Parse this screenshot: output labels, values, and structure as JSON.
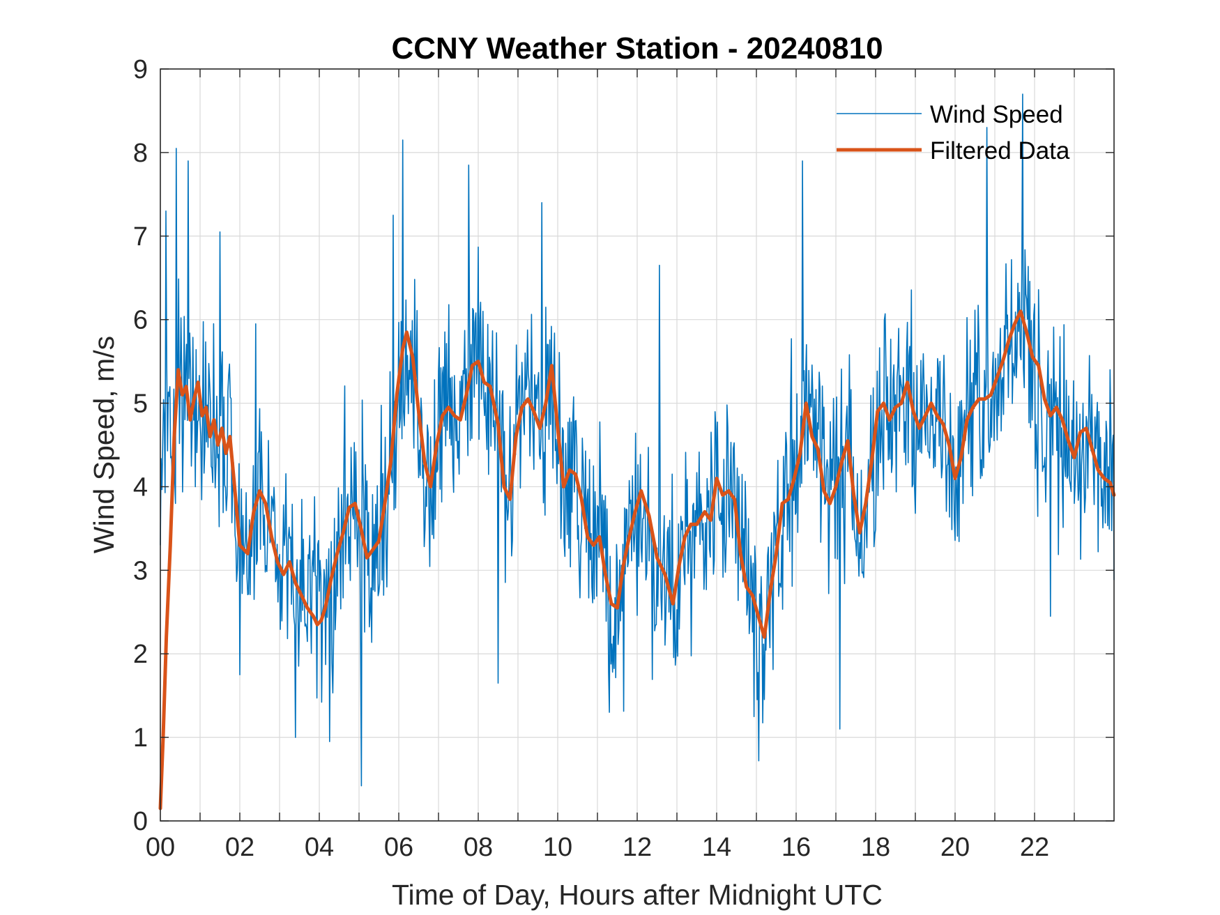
{
  "chart_data": {
    "type": "line",
    "title": "CCNY Weather Station - 20240810",
    "xlabel": "Time of Day, Hours after Midnight UTC",
    "ylabel": "Wind Speed, m/s",
    "xlim": [
      0,
      24
    ],
    "ylim": [
      0,
      9
    ],
    "x_ticks": [
      0,
      2,
      4,
      6,
      8,
      10,
      12,
      14,
      16,
      18,
      20,
      22
    ],
    "x_tick_labels": [
      "00",
      "02",
      "04",
      "06",
      "08",
      "10",
      "12",
      "14",
      "16",
      "18",
      "20",
      "22"
    ],
    "y_ticks": [
      0,
      1,
      2,
      3,
      4,
      5,
      6,
      7,
      8,
      9
    ],
    "y_tick_labels": [
      "0",
      "1",
      "2",
      "3",
      "4",
      "5",
      "6",
      "7",
      "8",
      "9"
    ],
    "grid": true,
    "legend_position": "top-right",
    "sample_interval_hours": 0.02,
    "series": [
      {
        "name": "Wind Speed",
        "color": "#0072BD",
        "line_width": "thin",
        "description": "raw 1-minute wind speed, highly noisy around the filtered trend",
        "key_points": [
          [
            0.0,
            3.3
          ],
          [
            0.15,
            7.3
          ],
          [
            0.4,
            8.05
          ],
          [
            0.7,
            7.9
          ],
          [
            1.5,
            7.05
          ],
          [
            2.0,
            1.75
          ],
          [
            2.4,
            5.95
          ],
          [
            3.4,
            1.0
          ],
          [
            4.25,
            0.95
          ],
          [
            5.05,
            0.42
          ],
          [
            5.85,
            7.25
          ],
          [
            6.1,
            8.15
          ],
          [
            7.3,
            5.3
          ],
          [
            7.75,
            7.85
          ],
          [
            8.5,
            1.65
          ],
          [
            9.6,
            7.4
          ],
          [
            11.3,
            1.3
          ],
          [
            12.55,
            6.65
          ],
          [
            15.05,
            0.72
          ],
          [
            16.15,
            7.9
          ],
          [
            17.1,
            1.1
          ],
          [
            20.8,
            8.3
          ],
          [
            21.7,
            8.7
          ],
          [
            22.4,
            2.45
          ],
          [
            23.9,
            5.4
          ]
        ]
      },
      {
        "name": "Filtered Data",
        "color": "#D95319",
        "line_width": "thick",
        "x": [
          0.0,
          0.07,
          0.15,
          0.25,
          0.35,
          0.45,
          0.55,
          0.65,
          0.75,
          0.85,
          0.95,
          1.05,
          1.15,
          1.25,
          1.35,
          1.45,
          1.55,
          1.65,
          1.75,
          1.85,
          2.0,
          2.2,
          2.35,
          2.5,
          2.65,
          2.8,
          2.95,
          3.1,
          3.25,
          3.4,
          3.55,
          3.7,
          3.85,
          3.95,
          4.05,
          4.15,
          4.3,
          4.45,
          4.6,
          4.75,
          4.9,
          5.05,
          5.2,
          5.35,
          5.5,
          5.65,
          5.8,
          5.95,
          6.1,
          6.2,
          6.35,
          6.5,
          6.65,
          6.8,
          6.95,
          7.1,
          7.25,
          7.4,
          7.55,
          7.7,
          7.85,
          8.0,
          8.15,
          8.3,
          8.5,
          8.65,
          8.8,
          8.95,
          9.1,
          9.25,
          9.4,
          9.55,
          9.7,
          9.85,
          10.0,
          10.15,
          10.3,
          10.45,
          10.6,
          10.75,
          10.9,
          11.05,
          11.2,
          11.35,
          11.5,
          11.65,
          11.8,
          11.95,
          12.1,
          12.3,
          12.5,
          12.7,
          12.9,
          13.05,
          13.2,
          13.35,
          13.5,
          13.7,
          13.85,
          14.0,
          14.15,
          14.3,
          14.45,
          14.6,
          14.75,
          14.9,
          15.05,
          15.2,
          15.35,
          15.5,
          15.65,
          15.8,
          15.95,
          16.1,
          16.25,
          16.4,
          16.55,
          16.7,
          16.85,
          17.0,
          17.15,
          17.3,
          17.45,
          17.6,
          17.75,
          17.9,
          18.05,
          18.2,
          18.35,
          18.5,
          18.65,
          18.8,
          18.95,
          19.1,
          19.25,
          19.4,
          19.55,
          19.7,
          19.85,
          20.0,
          20.15,
          20.3,
          20.45,
          20.6,
          20.75,
          20.9,
          21.05,
          21.2,
          21.35,
          21.5,
          21.65,
          21.8,
          21.95,
          22.1,
          22.25,
          22.4,
          22.55,
          22.7,
          22.85,
          23.0,
          23.15,
          23.3,
          23.45,
          23.6,
          23.75,
          23.9,
          24.0
        ],
        "y": [
          0.15,
          1.0,
          2.2,
          3.3,
          4.6,
          5.4,
          5.1,
          5.2,
          4.8,
          5.05,
          5.25,
          4.85,
          4.95,
          4.6,
          4.8,
          4.5,
          4.7,
          4.4,
          4.6,
          4.1,
          3.3,
          3.2,
          3.7,
          3.95,
          3.8,
          3.4,
          3.1,
          2.95,
          3.1,
          2.85,
          2.7,
          2.55,
          2.45,
          2.35,
          2.4,
          2.55,
          2.9,
          3.2,
          3.45,
          3.75,
          3.8,
          3.5,
          3.15,
          3.25,
          3.35,
          3.8,
          4.3,
          5.1,
          5.65,
          5.85,
          5.55,
          4.9,
          4.3,
          4.0,
          4.5,
          4.85,
          4.95,
          4.85,
          4.8,
          5.1,
          5.45,
          5.5,
          5.25,
          5.2,
          4.75,
          4.0,
          3.85,
          4.6,
          4.95,
          5.05,
          4.9,
          4.7,
          5.0,
          5.45,
          4.7,
          4.0,
          4.2,
          4.15,
          3.85,
          3.4,
          3.3,
          3.4,
          2.95,
          2.6,
          2.55,
          3.05,
          3.4,
          3.7,
          3.95,
          3.65,
          3.15,
          2.95,
          2.6,
          3.05,
          3.4,
          3.55,
          3.55,
          3.7,
          3.6,
          4.1,
          3.9,
          3.95,
          3.85,
          3.2,
          2.8,
          2.7,
          2.45,
          2.2,
          2.75,
          3.2,
          3.8,
          3.85,
          4.1,
          4.4,
          5.0,
          4.6,
          4.45,
          3.95,
          3.8,
          4.0,
          4.3,
          4.55,
          3.9,
          3.45,
          3.8,
          4.3,
          4.9,
          5.0,
          4.8,
          4.95,
          5.0,
          5.25,
          4.9,
          4.7,
          4.85,
          5.0,
          4.85,
          4.75,
          4.5,
          4.1,
          4.35,
          4.8,
          4.95,
          5.05,
          5.05,
          5.1,
          5.3,
          5.5,
          5.75,
          5.95,
          6.1,
          5.85,
          5.55,
          5.45,
          5.05,
          4.85,
          4.95,
          4.8,
          4.55,
          4.35,
          4.65,
          4.7,
          4.45,
          4.2,
          4.1,
          4.05,
          3.9
        ]
      }
    ]
  }
}
